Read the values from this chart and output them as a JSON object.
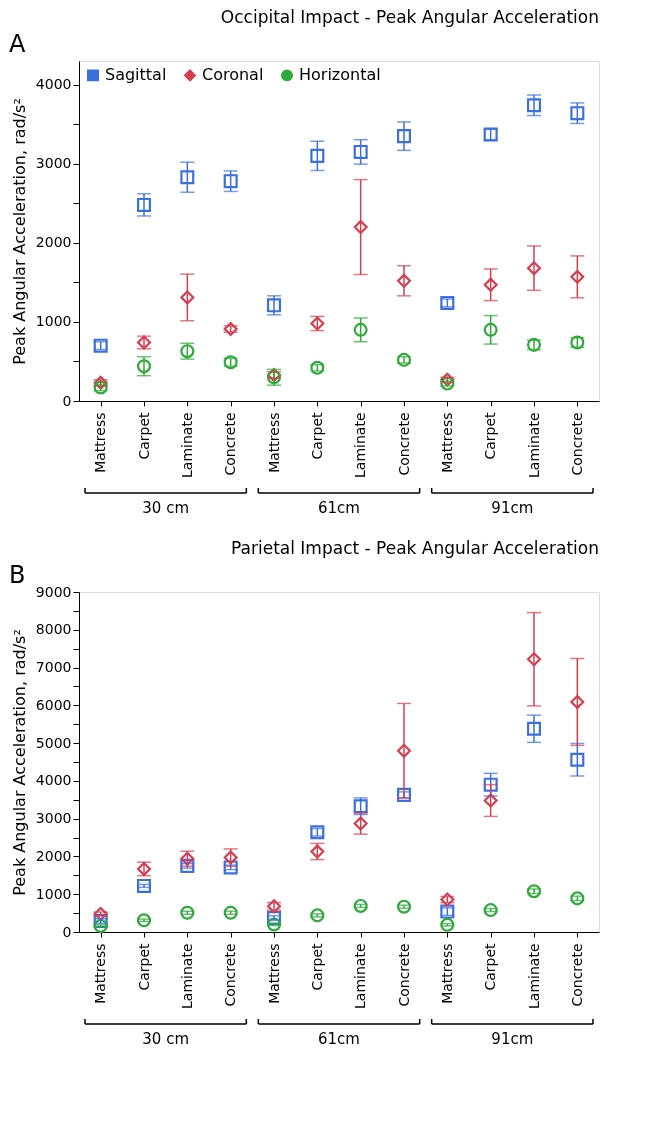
{
  "chart_data": [
    {
      "type": "scatter",
      "title": "Occipital Impact - Peak Angular Acceleration",
      "ylabel": "Peak Angular Acceleration, rad/s²",
      "categories": [
        "Mattress",
        "Carpet",
        "Laminate",
        "Concrete",
        "Mattress",
        "Carpet",
        "Laminate",
        "Concrete",
        "Mattress",
        "Carpet",
        "Laminate",
        "Concrete"
      ],
      "series": [
        {
          "name": "Sagittal",
          "color": "#3d6fde",
          "marker": "square",
          "values": [
            700,
            2480,
            2830,
            2780,
            1210,
            3100,
            3150,
            3350,
            1240,
            3370,
            3740,
            3640
          ],
          "errors": [
            50,
            140,
            190,
            130,
            120,
            185,
            155,
            180,
            50,
            70,
            130,
            130
          ]
        },
        {
          "name": "Coronal",
          "color": "#d63e50",
          "marker": "diamond",
          "values": [
            230,
            740,
            1310,
            910,
            330,
            980,
            2200,
            1520,
            270,
            1470,
            1680,
            1570
          ],
          "errors": [
            40,
            80,
            295,
            40,
            40,
            90,
            600,
            190,
            30,
            200,
            280,
            265
          ]
        },
        {
          "name": "Horizontal",
          "color": "#2eaa3a",
          "marker": "circle",
          "values": [
            170,
            440,
            630,
            490,
            300,
            420,
            900,
            520,
            220,
            900,
            710,
            740
          ],
          "errors": [
            40,
            120,
            100,
            50,
            100,
            40,
            150,
            40,
            30,
            180,
            60,
            60
          ]
        }
      ],
      "ylim": [
        0,
        4300
      ],
      "yticks": [
        0,
        {
          "value": 500,
          "label": null
        },
        1000,
        {
          "value": 1500,
          "label": null
        },
        2000,
        {
          "value": 2500,
          "label": null
        },
        3000,
        {
          "value": 3500,
          "label": null
        },
        4000
      ],
      "legend": "top left",
      "grid": false,
      "annotations": [
        "A",
        "30 cm",
        "61cm",
        "91cm"
      ]
    },
    {
      "type": "scatter",
      "title": "Parietal Impact - Peak Angular Acceleration",
      "ylabel": "Peak Angular Acceleration, rad/s²",
      "categories": [
        "Mattress",
        "Carpet",
        "Laminate",
        "Concrete",
        "Mattress",
        "Carpet",
        "Laminate",
        "Concrete",
        "Mattress",
        "Carpet",
        "Laminate",
        "Concrete"
      ],
      "series": [
        {
          "name": "Sagittal",
          "color": "#3d6fde",
          "marker": "square",
          "values": [
            290,
            1220,
            1750,
            1710,
            370,
            2640,
            3330,
            3630,
            540,
            3900,
            5380,
            4560
          ],
          "errors": [
            60,
            40,
            60,
            60,
            60,
            100,
            220,
            80,
            100,
            300,
            360,
            430
          ]
        },
        {
          "name": "Coronal",
          "color": "#d63e50",
          "marker": "diamond",
          "values": [
            480,
            1670,
            1940,
            1970,
            680,
            2130,
            2870,
            4800,
            860,
            3480,
            7220,
            6090
          ],
          "errors": [
            50,
            180,
            200,
            230,
            100,
            215,
            280,
            1250,
            80,
            420,
            1235,
            1150
          ]
        },
        {
          "name": "Horizontal",
          "color": "#2eaa3a",
          "marker": "circle",
          "values": [
            160,
            310,
            510,
            510,
            200,
            440,
            690,
            670,
            190,
            580,
            1080,
            890
          ],
          "errors": [
            30,
            30,
            40,
            40,
            30,
            40,
            40,
            40,
            30,
            40,
            60,
            60
          ]
        }
      ],
      "ylim": [
        0,
        9000
      ],
      "yticks": [
        0,
        {
          "value": 500,
          "label": null
        },
        1000,
        {
          "value": 1500,
          "label": null
        },
        2000,
        {
          "value": 2500,
          "label": null
        },
        3000,
        {
          "value": 3500,
          "label": null
        },
        4000,
        {
          "value": 4500,
          "label": null
        },
        5000,
        {
          "value": 5500,
          "label": null
        },
        6000,
        {
          "value": 6500,
          "label": null
        },
        7000,
        {
          "value": 7500,
          "label": null
        },
        8000,
        {
          "value": 8500,
          "label": null
        },
        9000
      ],
      "legend": "top left",
      "grid": false,
      "annotations": [
        "B",
        "30 cm",
        "61cm",
        "91cm"
      ]
    }
  ]
}
